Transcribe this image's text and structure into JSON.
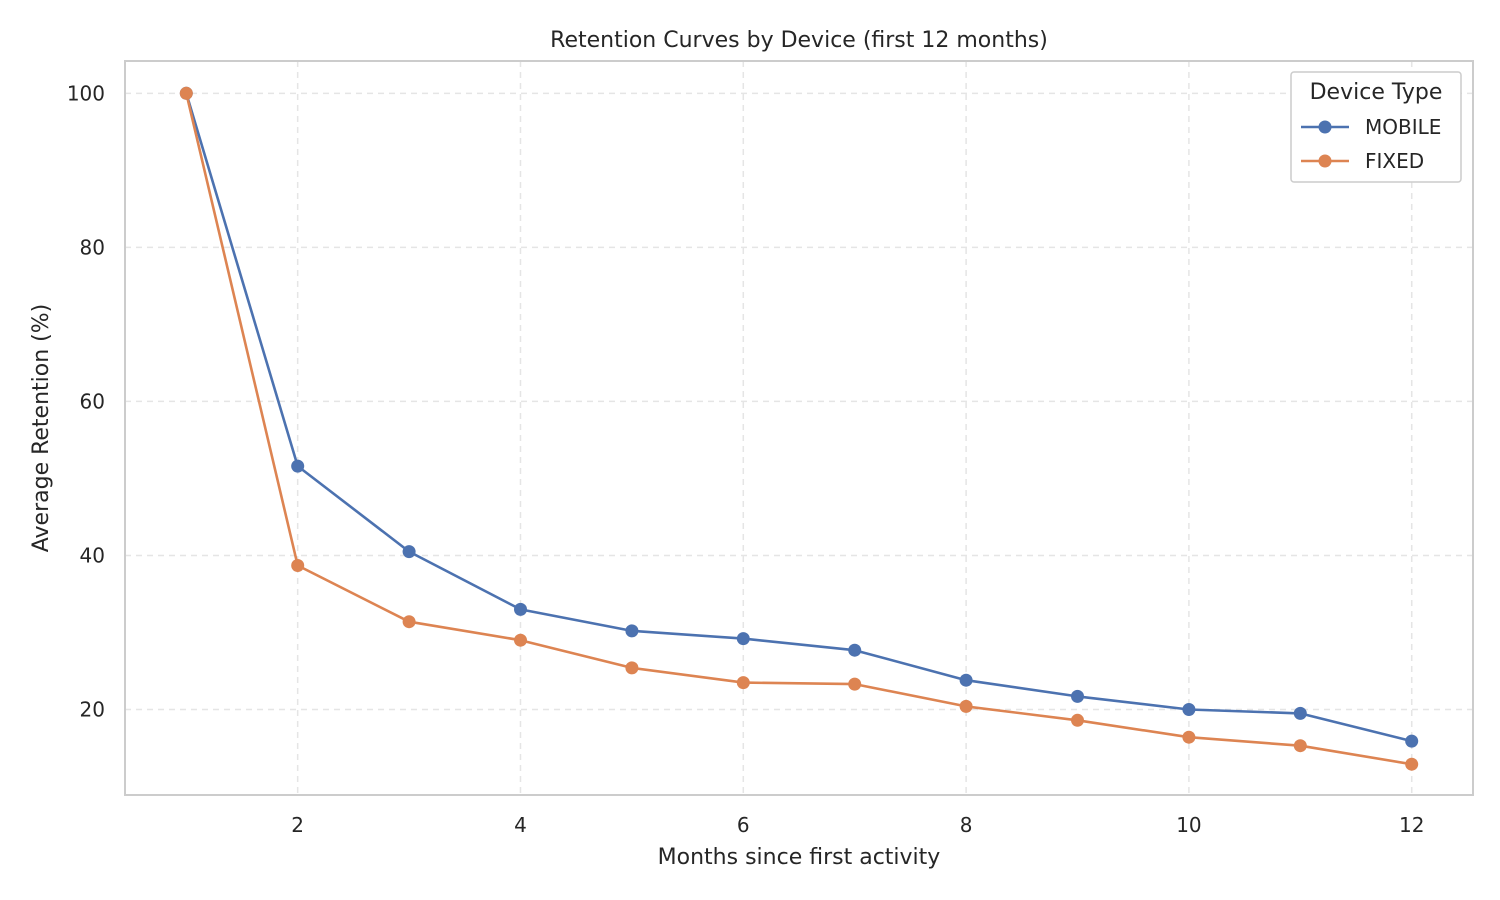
{
  "chart_data": {
    "type": "line",
    "title": "Retention Curves by Device (first 12 months)",
    "xlabel": "Months since first activity",
    "ylabel": "Average Retention (%)",
    "x": [
      1,
      2,
      3,
      4,
      5,
      6,
      7,
      8,
      9,
      10,
      11,
      12
    ],
    "xlim": [
      0.45,
      12.55
    ],
    "ylim": [
      8.9,
      104.2
    ],
    "xticks": [
      2,
      4,
      6,
      8,
      10,
      12
    ],
    "yticks": [
      20,
      40,
      60,
      80,
      100
    ],
    "grid": true,
    "legend": {
      "title": "Device Type",
      "position": "top-right"
    },
    "series": [
      {
        "name": "MOBILE",
        "color": "#4c72b0",
        "values": [
          100.0,
          51.6,
          40.5,
          33.0,
          30.2,
          29.2,
          27.7,
          23.8,
          21.7,
          20.0,
          19.5,
          15.9
        ]
      },
      {
        "name": "FIXED",
        "color": "#dd8452",
        "values": [
          100.0,
          38.7,
          31.4,
          29.0,
          25.4,
          23.5,
          23.3,
          20.4,
          18.6,
          16.4,
          15.3,
          12.9
        ]
      }
    ]
  }
}
